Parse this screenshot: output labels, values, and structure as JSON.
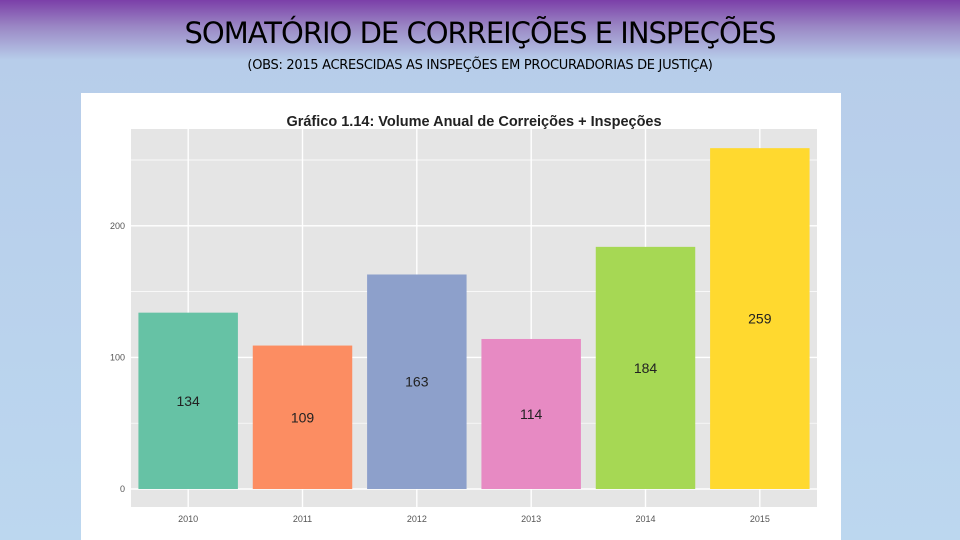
{
  "slide": {
    "title": "SOMATÓRIO DE CORREIÇÕES E INSPEÇÕES",
    "subtitle": "(OBS: 2015 ACRESCIDAS AS INSPEÇÕES EM PROCURADORIAS DE JUSTIÇA)"
  },
  "colors": {
    "panel_background": "#e5e5e5",
    "gridline": "#ffffff"
  },
  "chart_data": {
    "type": "bar",
    "title": "Gráfico 1.14: Volume Anual de Correições + Inspeções",
    "xlabel": "",
    "ylabel": "",
    "categories": [
      "2010",
      "2011",
      "2012",
      "2013",
      "2014",
      "2015"
    ],
    "values": [
      134,
      109,
      163,
      114,
      184,
      259
    ],
    "value_labels": [
      "134",
      "109",
      "163",
      "114",
      "184",
      "259"
    ],
    "colors": [
      "#66c2a5",
      "#fc8d62",
      "#8da0cb",
      "#e78ac3",
      "#a6d854",
      "#ffd92f"
    ],
    "ylim": [
      0,
      275
    ],
    "yticks": [
      0,
      100,
      200
    ],
    "ytick_labels": [
      "0",
      "100",
      "200"
    ],
    "grid": true,
    "legend": "none"
  }
}
